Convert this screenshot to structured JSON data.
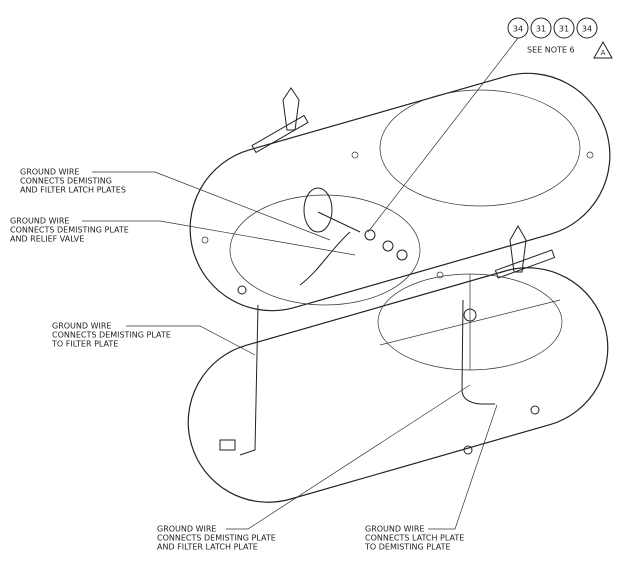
{
  "balloons": [
    "34",
    "31",
    "31",
    "34"
  ],
  "note": "SEE NOTE 6",
  "revision": "A",
  "callouts": [
    {
      "lines": [
        "GROUND WIRE",
        "CONNECTS DEMISTING",
        "AND FILTER LATCH PLATES"
      ]
    },
    {
      "lines": [
        "GROUND WIRE",
        "CONNECTS DEMISTING PLATE",
        "AND RELIEF VALVE"
      ]
    },
    {
      "lines": [
        "GROUND WIRE",
        "CONNECTS DEMISTING PLATE",
        "TO FILTER PLATE"
      ]
    },
    {
      "lines": [
        "GROUND WIRE",
        "CONNECTS DEMISTING PLATE",
        "AND FILTER LATCH PLATE"
      ]
    },
    {
      "lines": [
        "GROUND WIRE",
        "CONNECTS LATCH PLATE",
        "TO DEMISTING PLATE"
      ]
    }
  ]
}
